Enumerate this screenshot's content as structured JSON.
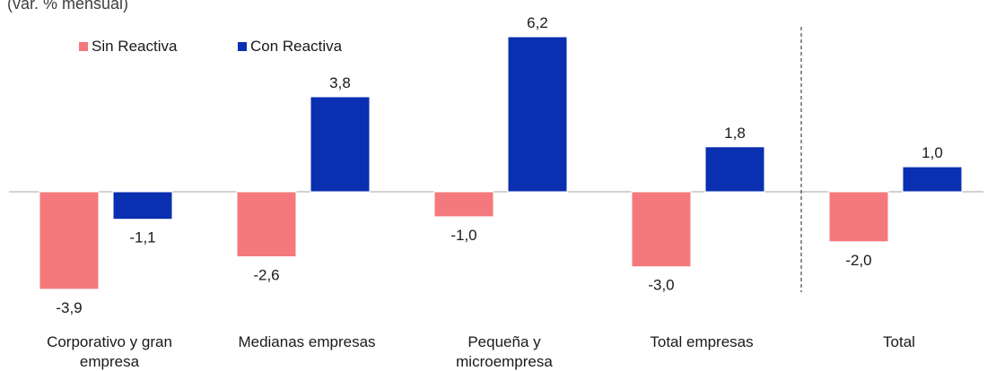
{
  "chart_data": {
    "type": "bar",
    "subtitle": "(var. % mensual)",
    "categories": [
      "Corporativo y gran empresa",
      "Medianas empresas",
      "Pequeña y microempresa",
      "Total empresas",
      "Total"
    ],
    "category_lines": [
      [
        "Corporativo y gran",
        "empresa"
      ],
      [
        "Medianas empresas"
      ],
      [
        "Pequeña y",
        "microempresa"
      ],
      [
        "Total empresas"
      ],
      [
        "Total"
      ]
    ],
    "series": [
      {
        "name": "Sin Reactiva",
        "color": "#f4797c",
        "values": [
          -3.9,
          -2.6,
          -1.0,
          -3.0,
          -2.0
        ]
      },
      {
        "name": "Con Reactiva",
        "color": "#0a2fb0",
        "values": [
          -1.1,
          3.8,
          6.2,
          1.8,
          1.0
        ]
      }
    ],
    "value_labels": [
      [
        "-3,9",
        "-2,6",
        "-1,0",
        "-3,0",
        "-2,0"
      ],
      [
        "-1,1",
        "3,8",
        "6,2",
        "1,8",
        "1,0"
      ]
    ],
    "legend_position": "top-left",
    "separator_before_last_category": true,
    "grid": false
  }
}
